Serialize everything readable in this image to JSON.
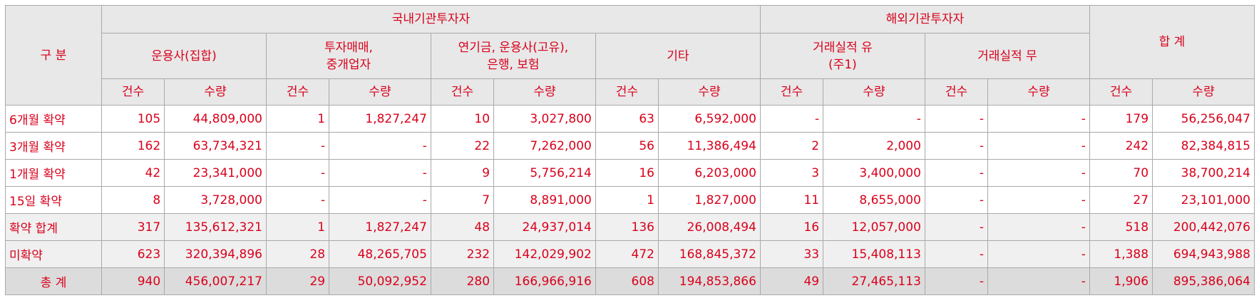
{
  "headers": {
    "category": "구 분",
    "domestic": "국내기관투자자",
    "foreign": "해외기관투자자",
    "total": "합 계",
    "groups": {
      "asset_mgmt": "운용사(집합)",
      "trading_line1": "투자매매,",
      "trading_line2": "중개업자",
      "pension_line1": "연기금, 운용사(고유),",
      "pension_line2": "은행, 보험",
      "other": "기타",
      "with_record_line1": "거래실적 유",
      "with_record_line2": "(주1)",
      "without_record": "거래실적 무"
    },
    "count": "건수",
    "qty": "수량"
  },
  "rows": [
    {
      "label": "6개월 확약",
      "style": "normal",
      "v": [
        "105",
        "44,809,000",
        "1",
        "1,827,247",
        "10",
        "3,027,800",
        "63",
        "6,592,000",
        "-",
        "-",
        "-",
        "-",
        "179",
        "56,256,047"
      ]
    },
    {
      "label": "3개월 확약",
      "style": "normal",
      "v": [
        "162",
        "63,734,321",
        "-",
        "-",
        "22",
        "7,262,000",
        "56",
        "11,386,494",
        "2",
        "2,000",
        "-",
        "-",
        "242",
        "82,384,815"
      ]
    },
    {
      "label": "1개월 확약",
      "style": "normal",
      "v": [
        "42",
        "23,341,000",
        "-",
        "-",
        "9",
        "5,756,214",
        "16",
        "6,203,000",
        "3",
        "3,400,000",
        "-",
        "-",
        "70",
        "38,700,214"
      ]
    },
    {
      "label": "15일 확약",
      "style": "normal",
      "v": [
        "8",
        "3,728,000",
        "-",
        "-",
        "7",
        "8,891,000",
        "1",
        "1,827,000",
        "11",
        "8,655,000",
        "-",
        "-",
        "27",
        "23,101,000"
      ]
    },
    {
      "label": "확약 합계",
      "style": "shade",
      "v": [
        "317",
        "135,612,321",
        "1",
        "1,827,247",
        "48",
        "24,937,014",
        "136",
        "26,008,494",
        "16",
        "12,057,000",
        "-",
        "-",
        "518",
        "200,442,076"
      ]
    },
    {
      "label": "미확약",
      "style": "shade",
      "v": [
        "623",
        "320,394,896",
        "28",
        "48,265,705",
        "232",
        "142,029,902",
        "472",
        "168,845,372",
        "33",
        "15,408,113",
        "-",
        "-",
        "1,388",
        "694,943,988"
      ]
    },
    {
      "label": "총 계",
      "style": "total",
      "v": [
        "940",
        "456,007,217",
        "29",
        "50,092,952",
        "280",
        "166,966,916",
        "608",
        "194,853,866",
        "49",
        "27,465,113",
        "-",
        "-",
        "1,906",
        "895,386,064"
      ]
    }
  ]
}
